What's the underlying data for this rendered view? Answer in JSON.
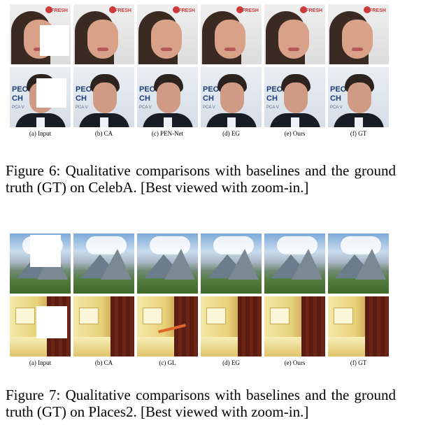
{
  "figure6": {
    "labels": [
      "(a) Input",
      "(b) CA",
      "(c) PEN-Net",
      "(d) EG",
      "(e) Ours",
      "(f) GT"
    ],
    "brand_text": "FRESH",
    "sign_text": "PEO",
    "sign_text2": "CH",
    "sign_small": "PCA V",
    "caption": "Figure 6: Qualitative comparisons with baselines and the ground truth (GT) on CelebA. [Best viewed with zoom-in.]"
  },
  "figure7": {
    "labels": [
      "(a) Input",
      "(b) CA",
      "(c) GL",
      "(d) EG",
      "(e) Ours",
      "(f) GT"
    ],
    "caption": "Figure 7: Qualitative comparisons with baselines and the ground truth (GT) on Places2. [Best viewed with zoom-in.]"
  }
}
